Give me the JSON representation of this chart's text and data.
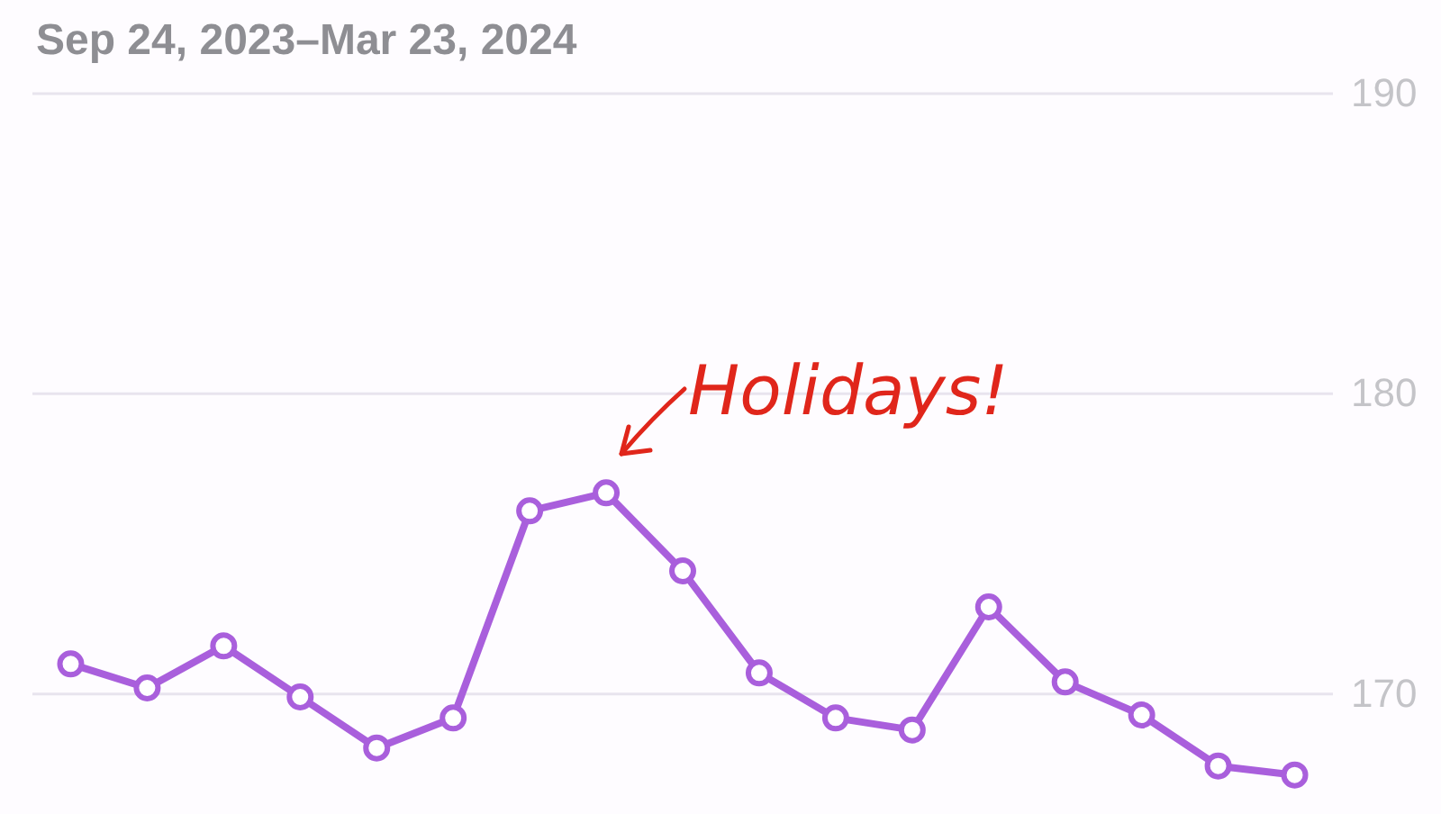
{
  "chart_data": {
    "type": "line",
    "title": "Sep 24, 2023–Mar 23, 2024",
    "categories": [
      null,
      null,
      null,
      null,
      null,
      null,
      null,
      null,
      null,
      null,
      null,
      null,
      null,
      null,
      null,
      null,
      null
    ],
    "series": [
      {
        "color": "#a95fdc",
        "values": [
          171.0,
          170.2,
          171.6,
          169.9,
          168.2,
          169.2,
          176.1,
          176.7,
          174.1,
          170.7,
          169.2,
          168.8,
          172.9,
          170.4,
          169.3,
          167.6,
          167.3
        ]
      }
    ],
    "ylim": [
      166,
      190
    ],
    "yticks": [
      170,
      180,
      190
    ],
    "grid": "y",
    "marker": "circle",
    "line_style": "solid",
    "annotations": [
      "Holidays!"
    ]
  }
}
